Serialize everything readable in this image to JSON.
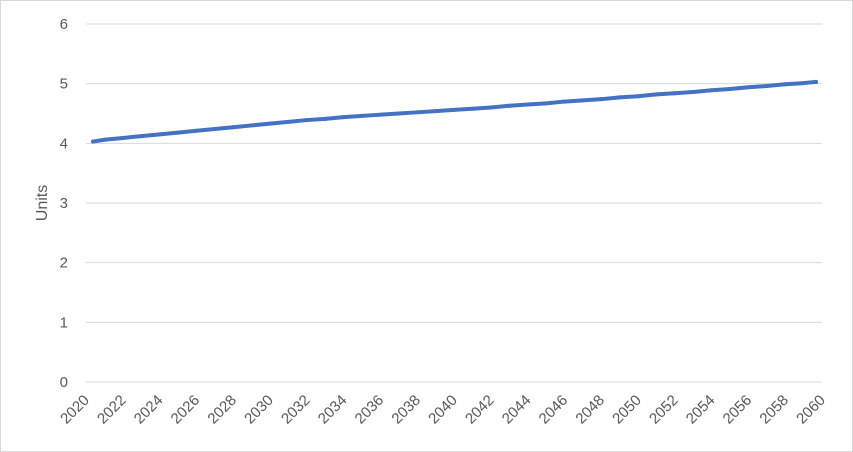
{
  "chart_data": {
    "type": "line",
    "title": "",
    "xlabel": "",
    "ylabel": "Units",
    "x": [
      2020,
      2021,
      2022,
      2023,
      2024,
      2025,
      2026,
      2027,
      2028,
      2029,
      2030,
      2031,
      2032,
      2033,
      2034,
      2035,
      2036,
      2037,
      2038,
      2039,
      2040,
      2041,
      2042,
      2043,
      2044,
      2045,
      2046,
      2047,
      2048,
      2049,
      2050,
      2051,
      2052,
      2053,
      2054,
      2055,
      2056,
      2057,
      2058,
      2059,
      2060
    ],
    "x_tick_labels": [
      "2020",
      "2022",
      "2024",
      "2026",
      "2028",
      "2030",
      "2032",
      "2034",
      "2036",
      "2038",
      "2040",
      "2042",
      "2044",
      "2046",
      "2048",
      "2050",
      "2052",
      "2054",
      "2056",
      "2058",
      "2060"
    ],
    "y_tick_labels": [
      "0",
      "1",
      "2",
      "3",
      "4",
      "5",
      "6"
    ],
    "ylim": [
      0,
      6
    ],
    "yticks": [
      0,
      1,
      2,
      3,
      4,
      5,
      6
    ],
    "grid": "horizontal",
    "legend": "none",
    "series": [
      {
        "values": [
          4.03,
          4.06,
          4.09,
          4.12,
          4.15,
          4.18,
          4.21,
          4.24,
          4.27,
          4.3,
          4.33,
          4.36,
          4.39,
          4.41,
          4.44,
          4.46,
          4.48,
          4.5,
          4.52,
          4.54,
          4.56,
          4.58,
          4.6,
          4.63,
          4.65,
          4.67,
          4.7,
          4.72,
          4.74,
          4.77,
          4.79,
          4.82,
          4.84,
          4.86,
          4.89,
          4.91,
          4.94,
          4.96,
          4.99,
          5.01,
          5.03
        ],
        "color": "#4472c4"
      }
    ],
    "colors": {
      "gridline": "#d9d9d9",
      "tick_text": "#595959"
    }
  }
}
